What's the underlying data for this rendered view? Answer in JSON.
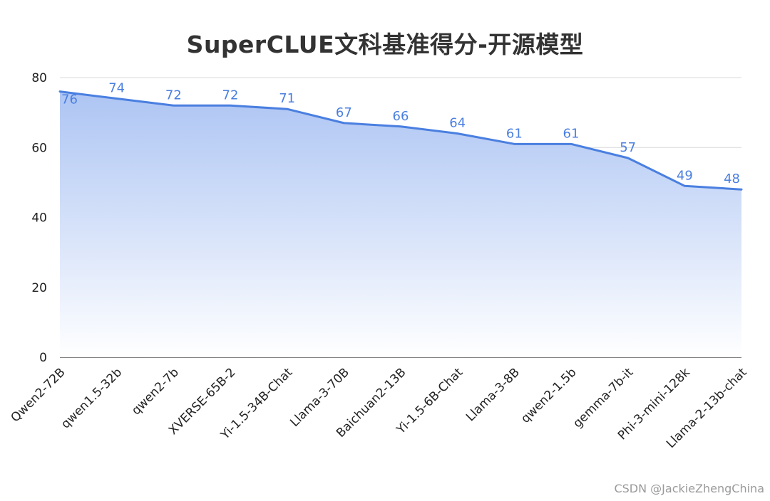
{
  "chart_data": {
    "type": "area",
    "title": "SuperCLUE文科基准得分-开源模型",
    "xlabel": "",
    "ylabel": "",
    "categories": [
      "Qwen2-72B",
      "qwen1.5-32b",
      "qwen2-7b",
      "XVERSE-65B-2",
      "Yi-1.5-34B-Chat",
      "Llama-3-70B",
      "Baichuan2-13B",
      "Yi-1.5-6B-Chat",
      "Llama-3-8B",
      "qwen2-1.5b",
      "gemma-7b-it",
      "Phi-3-mini-128k",
      "Llama-2-13b-chat"
    ],
    "values": [
      76,
      74,
      72,
      72,
      71,
      67,
      66,
      64,
      61,
      61,
      57,
      49,
      48
    ],
    "ylim": [
      0,
      80
    ],
    "yticks": [
      0,
      20,
      40,
      60,
      80
    ],
    "grid": true,
    "colors": {
      "line": "#4a7fe0",
      "fill_top": "#a9c2f3",
      "fill_bottom": "#ffffff",
      "label": "#4a7fe0"
    }
  },
  "credit": "CSDN @JackieZhengChina"
}
